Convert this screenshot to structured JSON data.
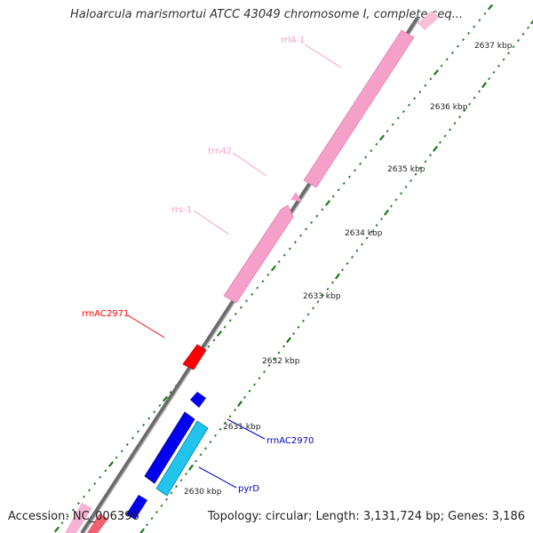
{
  "title": "Haloarcula marismortui ATCC 43049 chromosome I, complete seq...",
  "footer": {
    "accession": "Accession: NC_006396",
    "summary": "Topology: circular; Length: 3,131,724 bp; Genes: 3,186"
  },
  "ticks": [
    "2637 kbp",
    "2636 kbp",
    "2635 kbp",
    "2634 kbp",
    "2633 kbp",
    "2632 kbp",
    "2631 kbp",
    "2630 kbp"
  ],
  "features": [
    {
      "name": "rrlA-1",
      "color": "#f4a0c8"
    },
    {
      "name": "trn42",
      "color": "#f4a0c8"
    },
    {
      "name": "rrs-1",
      "color": "#f4a0c8"
    },
    {
      "name": "rrnAC2971",
      "color": "#ff0000"
    },
    {
      "name": "rrnAC2970",
      "color": "#0000cc"
    },
    {
      "name": "pyrD",
      "color": "#0000cc"
    }
  ],
  "colors": {
    "rRNA": "#f4a0c8",
    "rRNA_accent": "#ff0000",
    "cds_forward": "#0000ee",
    "cds_reverse": "#22c4ee",
    "tick": "#1a7a1a",
    "backbone": "#777777"
  }
}
